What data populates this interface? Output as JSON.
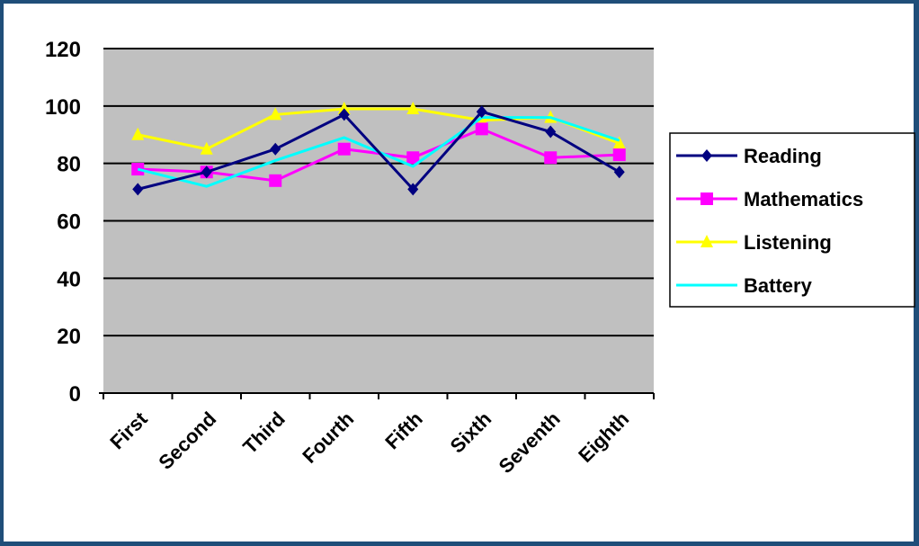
{
  "colors": {
    "frame_border": "#1f4e79",
    "plot_background": "#c0c0c0",
    "grid": "#000000"
  },
  "chart_data": {
    "type": "line",
    "title": "",
    "xlabel": "",
    "ylabel": "",
    "ylim": [
      0,
      120
    ],
    "yticks": [
      0,
      20,
      40,
      60,
      80,
      100,
      120
    ],
    "categories": [
      "First",
      "Second",
      "Third",
      "Fourth",
      "Fifth",
      "Sixth",
      "Seventh",
      "Eighth"
    ],
    "legend_position": "right",
    "grid": true,
    "series": [
      {
        "name": "Reading",
        "color": "#000080",
        "marker": "diamond",
        "values": [
          71,
          77,
          85,
          97,
          71,
          98,
          91,
          77
        ]
      },
      {
        "name": "Mathematics",
        "color": "#ff00ff",
        "marker": "square",
        "values": [
          78,
          77,
          74,
          85,
          82,
          92,
          82,
          83
        ]
      },
      {
        "name": "Listening",
        "color": "#ffff00",
        "marker": "triangle",
        "values": [
          90,
          85,
          97,
          99,
          99,
          95,
          96,
          87
        ]
      },
      {
        "name": "Battery",
        "color": "#00ffff",
        "marker": "none",
        "values": [
          78,
          72,
          81,
          89,
          79,
          96,
          96,
          88
        ]
      }
    ]
  }
}
